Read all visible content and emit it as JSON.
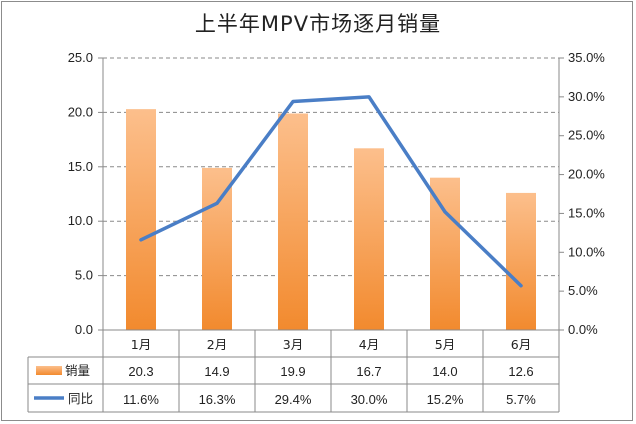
{
  "chart_data": {
    "type": "bar",
    "title": "上半年MPV市场逐月销量",
    "categories": [
      "1月",
      "2月",
      "3月",
      "4月",
      "5月",
      "6月"
    ],
    "series": [
      {
        "name": "销量",
        "kind": "bar",
        "axis": "left",
        "values": [
          20.3,
          14.9,
          19.9,
          16.7,
          14.0,
          12.6
        ],
        "labels": [
          "20.3",
          "14.9",
          "19.9",
          "16.7",
          "14.0",
          "12.6"
        ],
        "color": "#f28a2e",
        "color_light": "#fcbf8c"
      },
      {
        "name": "同比",
        "kind": "line",
        "axis": "right",
        "values": [
          11.6,
          16.3,
          29.4,
          30.0,
          15.2,
          5.7
        ],
        "labels": [
          "11.6%",
          "16.3%",
          "29.4%",
          "30.0%",
          "15.2%",
          "5.7%"
        ],
        "color": "#4a7ec6"
      }
    ],
    "ylim": [
      0,
      25
    ],
    "yticks": [
      "0.0",
      "5.0",
      "10.0",
      "15.0",
      "20.0",
      "25.0"
    ],
    "y2lim": [
      0,
      35
    ],
    "y2ticks": [
      "0.0%",
      "5.0%",
      "10.0%",
      "15.0%",
      "20.0%",
      "25.0%",
      "30.0%",
      "35.0%"
    ],
    "grid": "horizontal-dashed",
    "legend": "data-table"
  }
}
